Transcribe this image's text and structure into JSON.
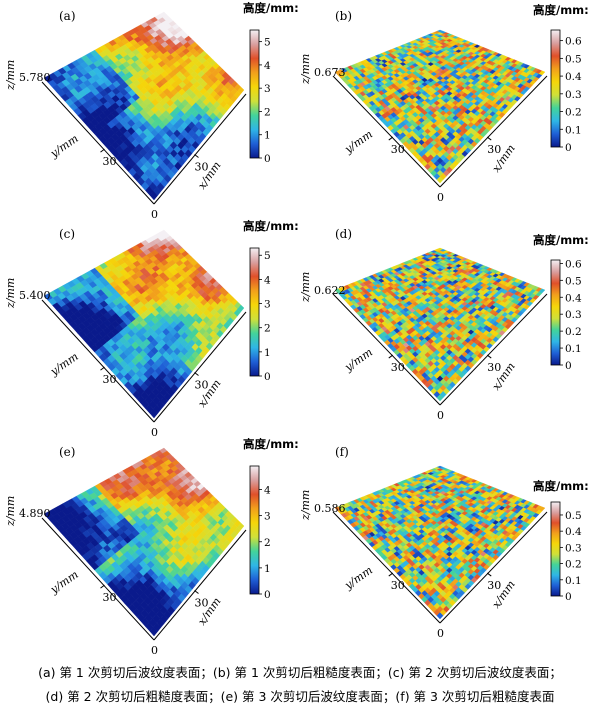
{
  "chart_data": [
    {
      "type": "surface3d",
      "panel": "(a)",
      "surface": "waviness",
      "z_max": "5.780",
      "y_tick": "30",
      "x_tick": "30",
      "origin": "0",
      "ylabel": "y/mm",
      "xlabel": "x/mm",
      "zlabel": "z/mm",
      "colorbar_title": "高度/mm:",
      "colorbar_range": [
        0,
        5.5
      ],
      "colorbar_ticks": [
        "0",
        "1",
        "2",
        "3",
        "4",
        "5"
      ],
      "colorbar_values": [
        0,
        1,
        2,
        3,
        4,
        5
      ]
    },
    {
      "type": "surface3d",
      "panel": "(b)",
      "surface": "roughness",
      "z_max": "0.673",
      "y_tick": "30",
      "x_tick": "30",
      "origin": "0",
      "ylabel": "y/mm",
      "xlabel": "x/mm",
      "zlabel": "z/mm",
      "colorbar_title": "高度/mm:",
      "colorbar_range": [
        0,
        0.66
      ],
      "colorbar_ticks": [
        "0",
        "0.1",
        "0.2",
        "0.3",
        "0.4",
        "0.5",
        "0.6"
      ],
      "colorbar_values": [
        0,
        0.1,
        0.2,
        0.3,
        0.4,
        0.5,
        0.6
      ]
    },
    {
      "type": "surface3d",
      "panel": "(c)",
      "surface": "waviness",
      "z_max": "5.400",
      "y_tick": "30",
      "x_tick": "30",
      "origin": "0",
      "ylabel": "y/mm",
      "xlabel": "x/mm",
      "zlabel": "z/mm",
      "colorbar_title": "高度/mm:",
      "colorbar_range": [
        0,
        5.3
      ],
      "colorbar_ticks": [
        "0",
        "1",
        "2",
        "3",
        "4",
        "5"
      ],
      "colorbar_values": [
        0,
        1,
        2,
        3,
        4,
        5
      ]
    },
    {
      "type": "surface3d",
      "panel": "(d)",
      "surface": "roughness",
      "z_max": "0.622",
      "y_tick": "30",
      "x_tick": "30",
      "origin": "0",
      "ylabel": "y/mm",
      "xlabel": "x/mm",
      "zlabel": "z/mm",
      "colorbar_title": "高度/mm:",
      "colorbar_range": [
        0,
        0.62
      ],
      "colorbar_ticks": [
        "0",
        "0.1",
        "0.2",
        "0.3",
        "0.4",
        "0.5",
        "0.6"
      ],
      "colorbar_values": [
        0,
        0.1,
        0.2,
        0.3,
        0.4,
        0.5,
        0.6
      ]
    },
    {
      "type": "surface3d",
      "panel": "(e)",
      "surface": "waviness",
      "z_max": "4.890",
      "y_tick": "30",
      "x_tick": "30",
      "origin": "0",
      "ylabel": "y/mm",
      "xlabel": "x/mm",
      "zlabel": "z/mm",
      "colorbar_title": "高度/mm:",
      "colorbar_range": [
        0,
        4.9
      ],
      "colorbar_ticks": [
        "0",
        "1",
        "2",
        "3",
        "4"
      ],
      "colorbar_values": [
        0,
        1,
        2,
        3,
        4
      ]
    },
    {
      "type": "surface3d",
      "panel": "(f)",
      "surface": "roughness",
      "z_max": "0.586",
      "y_tick": "30",
      "x_tick": "30",
      "origin": "0",
      "ylabel": "y/mm",
      "xlabel": "x/mm",
      "zlabel": "z/mm",
      "colorbar_title": "高度/mm:",
      "colorbar_range": [
        0,
        0.58
      ],
      "colorbar_ticks": [
        "0",
        "0.1",
        "0.2",
        "0.3",
        "0.4",
        "0.5"
      ],
      "colorbar_values": [
        0,
        0.1,
        0.2,
        0.3,
        0.4,
        0.5
      ]
    }
  ],
  "colormap": [
    "#0a1a8c",
    "#1f5fd6",
    "#2fb6e6",
    "#43d39a",
    "#cfe03a",
    "#f5d60a",
    "#f2a01c",
    "#e0502a",
    "#d9a0a0",
    "#f4f0f4"
  ],
  "caption": {
    "line1": "(a)  第 1 次剪切后波纹度表面；(b)  第 1 次剪切后粗糙度表面；(c)  第 2 次剪切后波纹度表面；",
    "line2": "(d)  第 2 次剪切后粗糙度表面；(e)  第 3 次剪切后波纹度表面；(f)  第 3 次剪切后粗糙度表面"
  }
}
